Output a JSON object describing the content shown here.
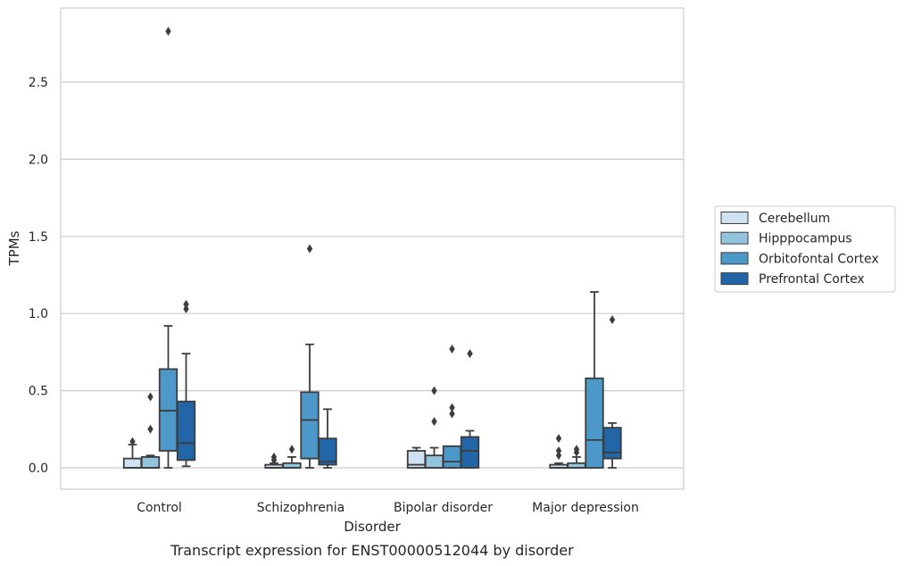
{
  "chart_data": {
    "type": "box",
    "caption": "Transcript expression for ENST00000512044 by disorder",
    "xlabel": "Disorder",
    "ylabel": "TPMs",
    "ylim": [
      -0.14,
      3.0
    ],
    "yticks": [
      "0.0",
      "0.5",
      "1.0",
      "1.5",
      "2.0",
      "2.5"
    ],
    "ytick_values": [
      0.0,
      0.5,
      1.0,
      1.5,
      2.0,
      2.5
    ],
    "grid": "horizontal",
    "legend_position": "right",
    "categories": [
      "Control",
      "Schizophrenia",
      "Bipolar disorder",
      "Major depression"
    ],
    "series": [
      {
        "name": "Cerebellum",
        "color": "#cfe1f2",
        "boxes": [
          {
            "q1": 0.0,
            "median": 0.0,
            "q3": 0.06,
            "whislo": 0.0,
            "whishi": 0.15,
            "fliers": [
              0.17
            ]
          },
          {
            "q1": 0.0,
            "median": 0.0,
            "q3": 0.02,
            "whislo": 0.0,
            "whishi": 0.03,
            "fliers": [
              0.05,
              0.07
            ]
          },
          {
            "q1": 0.0,
            "median": 0.02,
            "q3": 0.11,
            "whislo": 0.0,
            "whishi": 0.13,
            "fliers": []
          },
          {
            "q1": 0.0,
            "median": 0.0,
            "q3": 0.02,
            "whislo": 0.0,
            "whishi": 0.03,
            "fliers": [
              0.08,
              0.11,
              0.19
            ]
          }
        ]
      },
      {
        "name": "Hipppocampus",
        "color": "#93c4de",
        "boxes": [
          {
            "q1": 0.0,
            "median": 0.0,
            "q3": 0.07,
            "whislo": 0.0,
            "whishi": 0.08,
            "fliers": [
              0.25,
              0.46
            ]
          },
          {
            "q1": 0.0,
            "median": 0.0,
            "q3": 0.03,
            "whislo": 0.0,
            "whishi": 0.07,
            "fliers": [
              0.12
            ]
          },
          {
            "q1": 0.0,
            "median": 0.0,
            "q3": 0.08,
            "whislo": 0.0,
            "whishi": 0.13,
            "fliers": [
              0.3,
              0.5
            ]
          },
          {
            "q1": 0.0,
            "median": 0.0,
            "q3": 0.03,
            "whislo": 0.0,
            "whishi": 0.07,
            "fliers": [
              0.1,
              0.12
            ]
          }
        ]
      },
      {
        "name": "Orbitofontal Cortex",
        "color": "#4b98c9",
        "boxes": [
          {
            "q1": 0.11,
            "median": 0.37,
            "q3": 0.64,
            "whislo": 0.0,
            "whishi": 0.92,
            "fliers": [
              2.83
            ]
          },
          {
            "q1": 0.06,
            "median": 0.31,
            "q3": 0.49,
            "whislo": 0.0,
            "whishi": 0.8,
            "fliers": [
              1.42
            ]
          },
          {
            "q1": 0.0,
            "median": 0.04,
            "q3": 0.14,
            "whislo": 0.0,
            "whishi": 0.14,
            "fliers": [
              0.35,
              0.39,
              0.77
            ]
          },
          {
            "q1": 0.0,
            "median": 0.18,
            "q3": 0.58,
            "whislo": 0.0,
            "whishi": 1.14,
            "fliers": []
          }
        ]
      },
      {
        "name": "Prefrontal Cortex",
        "color": "#2366a8",
        "boxes": [
          {
            "q1": 0.05,
            "median": 0.16,
            "q3": 0.43,
            "whislo": 0.01,
            "whishi": 0.74,
            "fliers": [
              1.03,
              1.06
            ]
          },
          {
            "q1": 0.02,
            "median": 0.04,
            "q3": 0.19,
            "whislo": 0.0,
            "whishi": 0.38,
            "fliers": []
          },
          {
            "q1": 0.0,
            "median": 0.11,
            "q3": 0.2,
            "whislo": 0.0,
            "whishi": 0.24,
            "fliers": [
              0.74
            ]
          },
          {
            "q1": 0.06,
            "median": 0.1,
            "q3": 0.26,
            "whislo": 0.0,
            "whishi": 0.29,
            "fliers": [
              0.96
            ]
          }
        ]
      }
    ]
  }
}
